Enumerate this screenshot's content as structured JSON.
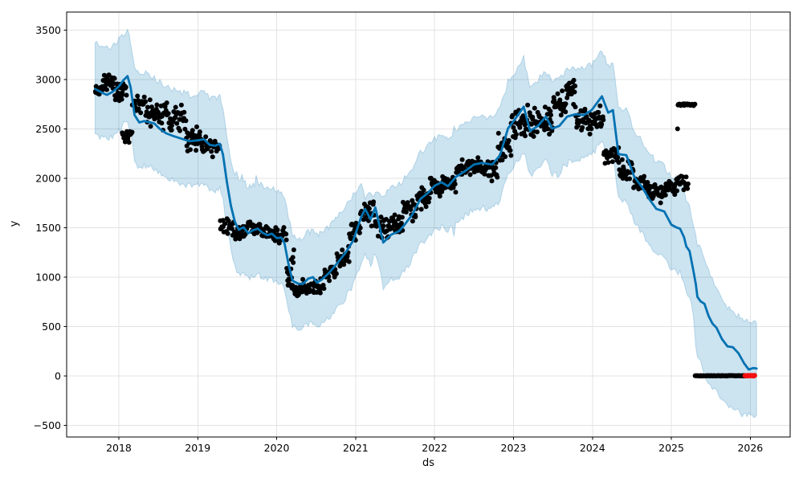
{
  "chart_data": {
    "type": "line+scatter+band",
    "description": "Prophet-style time series forecast: black actual points, blue yhat line, light blue uncertainty interval, red anomaly points at zero near forecast end",
    "title": "",
    "xlabel": "ds",
    "ylabel": "y",
    "xlim": [
      2017.339,
      2026.505
    ],
    "ylim": [
      -618,
      3683
    ],
    "grid": true,
    "x_tick_values": [
      2018,
      2019,
      2020,
      2021,
      2022,
      2023,
      2024,
      2025,
      2026
    ],
    "x_tick_labels": [
      "2018",
      "2019",
      "2020",
      "2021",
      "2022",
      "2023",
      "2024",
      "2025",
      "2026"
    ],
    "y_tick_values": [
      -500,
      0,
      500,
      1000,
      1500,
      2000,
      2500,
      3000,
      3500
    ],
    "y_tick_labels": [
      "−500",
      "0",
      "500",
      "1000",
      "1500",
      "2000",
      "2500",
      "3000",
      "3500"
    ],
    "colors": {
      "forecast_line": "#0072B2",
      "band_fill": "rgba(0,114,178,0.2)",
      "band_edge": "rgba(0,114,178,0.22)",
      "actual_points": "#000000",
      "anomaly_points": "#f20f0f",
      "grid": "#e3e3e3",
      "spine": "#000000",
      "text": "#000000"
    },
    "forecast": {
      "x": [
        2017.7,
        2017.78,
        2017.85,
        2017.92,
        2018.0,
        2018.06,
        2018.11,
        2018.15,
        2018.2,
        2018.26,
        2018.32,
        2018.38,
        2018.45,
        2018.52,
        2018.6,
        2018.7,
        2018.8,
        2018.9,
        2019.0,
        2019.08,
        2019.15,
        2019.22,
        2019.28,
        2019.32,
        2019.37,
        2019.42,
        2019.47,
        2019.52,
        2019.58,
        2019.64,
        2019.7,
        2019.76,
        2019.82,
        2019.88,
        2019.94,
        2020.0,
        2020.06,
        2020.1,
        2020.15,
        2020.2,
        2020.27,
        2020.33,
        2020.4,
        2020.46,
        2020.51,
        2020.57,
        2020.66,
        2020.77,
        2020.87,
        2020.97,
        2021.07,
        2021.12,
        2021.19,
        2021.25,
        2021.35,
        2021.45,
        2021.55,
        2021.62,
        2021.72,
        2021.82,
        2021.92,
        2022.0,
        2022.09,
        2022.17,
        2022.27,
        2022.39,
        2022.5,
        2022.6,
        2022.73,
        2022.83,
        2022.93,
        2023.03,
        2023.13,
        2023.21,
        2023.31,
        2023.41,
        2023.49,
        2023.58,
        2023.68,
        2023.79,
        2023.89,
        2023.99,
        2024.12,
        2024.2,
        2024.26,
        2024.33,
        2024.43,
        2024.53,
        2024.63,
        2024.72,
        2024.81,
        2024.91,
        2025.0,
        2025.06,
        2025.11,
        2025.16,
        2025.19,
        2025.23,
        2025.28,
        2025.31,
        2025.33,
        2025.37,
        2025.42,
        2025.47,
        2025.52,
        2025.57,
        2025.64,
        2025.71,
        2025.78,
        2025.85,
        2025.92,
        2025.98,
        2026.04,
        2026.08
      ],
      "yhat": [
        2905,
        2870,
        2845,
        2875,
        2930,
        2995,
        3035,
        2920,
        2640,
        2565,
        2580,
        2570,
        2555,
        2500,
        2455,
        2425,
        2400,
        2375,
        2385,
        2395,
        2340,
        2330,
        2350,
        2240,
        1960,
        1720,
        1560,
        1480,
        1505,
        1445,
        1475,
        1490,
        1450,
        1425,
        1440,
        1395,
        1400,
        1340,
        1130,
        965,
        935,
        930,
        985,
        1000,
        945,
        975,
        1040,
        1145,
        1245,
        1370,
        1610,
        1690,
        1585,
        1705,
        1350,
        1430,
        1465,
        1530,
        1635,
        1790,
        1855,
        1925,
        1960,
        1920,
        2015,
        2075,
        2140,
        2155,
        2140,
        2235,
        2505,
        2610,
        2725,
        2480,
        2530,
        2625,
        2505,
        2530,
        2625,
        2650,
        2640,
        2690,
        2830,
        2665,
        2690,
        2245,
        2235,
        2015,
        1910,
        1790,
        1690,
        1665,
        1530,
        1505,
        1490,
        1405,
        1310,
        1265,
        1060,
        930,
        800,
        755,
        730,
        610,
        530,
        490,
        375,
        300,
        290,
        230,
        130,
        65,
        80,
        75
      ],
      "yhat_upper": [
        3375,
        3340,
        3315,
        3345,
        3400,
        3465,
        3485,
        3390,
        3110,
        3035,
        3050,
        3040,
        3025,
        2970,
        2925,
        2895,
        2870,
        2845,
        2855,
        2865,
        2810,
        2800,
        2820,
        2710,
        2430,
        2190,
        2030,
        1950,
        1975,
        1915,
        1945,
        1960,
        1920,
        1895,
        1910,
        1865,
        1870,
        1810,
        1600,
        1435,
        1405,
        1400,
        1455,
        1470,
        1415,
        1445,
        1510,
        1615,
        1715,
        1840,
        1960,
        1800,
        1870,
        1830,
        1840,
        1900,
        1935,
        2000,
        2105,
        2260,
        2325,
        2395,
        2430,
        2390,
        2485,
        2545,
        2610,
        2625,
        2610,
        2705,
        2975,
        3080,
        3195,
        2950,
        3000,
        3095,
        2975,
        3000,
        3095,
        3120,
        3110,
        3160,
        3300,
        3135,
        3160,
        2715,
        2705,
        2485,
        2380,
        2260,
        2160,
        2135,
        2000,
        1975,
        1960,
        1875,
        1780,
        1735,
        1530,
        1430,
        1330,
        1280,
        1200,
        1080,
        980,
        870,
        760,
        680,
        640,
        600,
        560,
        545,
        540,
        535
      ],
      "yhat_lower": [
        2450,
        2415,
        2390,
        2420,
        2475,
        2540,
        2580,
        2465,
        2185,
        2110,
        2125,
        2115,
        2100,
        2045,
        2000,
        1970,
        1945,
        1920,
        1930,
        1940,
        1885,
        1875,
        1895,
        1785,
        1505,
        1265,
        1105,
        1025,
        1050,
        990,
        1020,
        1035,
        995,
        970,
        985,
        940,
        945,
        885,
        675,
        510,
        480,
        475,
        530,
        545,
        490,
        520,
        585,
        690,
        790,
        915,
        1155,
        1235,
        1130,
        1250,
        895,
        975,
        1010,
        1075,
        1180,
        1335,
        1400,
        1470,
        1505,
        1465,
        1560,
        1620,
        1685,
        1700,
        1685,
        1780,
        2050,
        2155,
        2270,
        2025,
        2075,
        2170,
        2050,
        2075,
        2170,
        2195,
        2185,
        2235,
        2375,
        2210,
        2235,
        1790,
        1780,
        1560,
        1455,
        1335,
        1235,
        1210,
        1075,
        1050,
        1035,
        950,
        855,
        810,
        605,
        300,
        220,
        130,
        30,
        -60,
        -120,
        -170,
        -250,
        -300,
        -330,
        -360,
        -380,
        -395,
        -400,
        -400
      ]
    },
    "actuals": {
      "marker": "black-dot",
      "segments_format": [
        "x_start",
        "x_end",
        "n_points",
        "mean_y",
        "spread_y"
      ],
      "segments": [
        [
          2017.7,
          2017.8,
          18,
          2890,
          50
        ],
        [
          2017.8,
          2017.95,
          24,
          2975,
          90
        ],
        [
          2017.95,
          2018.1,
          24,
          2890,
          95
        ],
        [
          2018.04,
          2018.17,
          15,
          2440,
          85
        ],
        [
          2018.17,
          2018.34,
          26,
          2750,
          90
        ],
        [
          2018.34,
          2018.6,
          34,
          2650,
          140
        ],
        [
          2018.6,
          2018.85,
          32,
          2610,
          150
        ],
        [
          2018.85,
          2019.04,
          26,
          2400,
          130
        ],
        [
          2019.04,
          2019.28,
          30,
          2320,
          95
        ],
        [
          2019.28,
          2019.46,
          22,
          1520,
          90
        ],
        [
          2019.46,
          2019.62,
          22,
          1445,
          80
        ],
        [
          2019.62,
          2019.8,
          26,
          1500,
          85
        ],
        [
          2019.8,
          2019.97,
          24,
          1445,
          75
        ],
        [
          2019.97,
          2020.12,
          20,
          1430,
          90
        ],
        [
          2020.12,
          2020.22,
          18,
          1100,
          270
        ],
        [
          2020.22,
          2020.42,
          28,
          890,
          85
        ],
        [
          2020.42,
          2020.6,
          24,
          905,
          90
        ],
        [
          2020.6,
          2020.76,
          22,
          1040,
          90
        ],
        [
          2020.76,
          2020.92,
          22,
          1190,
          110
        ],
        [
          2020.92,
          2021.06,
          20,
          1440,
          115
        ],
        [
          2021.06,
          2021.24,
          24,
          1650,
          140
        ],
        [
          2021.24,
          2021.42,
          24,
          1500,
          130
        ],
        [
          2021.42,
          2021.6,
          26,
          1520,
          120
        ],
        [
          2021.6,
          2021.77,
          24,
          1700,
          110
        ],
        [
          2021.77,
          2021.94,
          24,
          1810,
          110
        ],
        [
          2021.94,
          2022.1,
          24,
          1900,
          110
        ],
        [
          2022.1,
          2022.27,
          24,
          1950,
          120
        ],
        [
          2022.27,
          2022.44,
          24,
          2090,
          110
        ],
        [
          2022.44,
          2022.62,
          26,
          2150,
          120
        ],
        [
          2022.62,
          2022.8,
          24,
          2090,
          120
        ],
        [
          2022.8,
          2022.97,
          24,
          2330,
          140
        ],
        [
          2022.97,
          2023.14,
          24,
          2550,
          150
        ],
        [
          2023.14,
          2023.32,
          26,
          2550,
          160
        ],
        [
          2023.32,
          2023.5,
          24,
          2560,
          140
        ],
        [
          2023.5,
          2023.66,
          24,
          2740,
          150
        ],
        [
          2023.66,
          2023.78,
          20,
          2870,
          160
        ],
        [
          2023.78,
          2023.97,
          26,
          2580,
          140
        ],
        [
          2023.97,
          2024.14,
          26,
          2590,
          120
        ],
        [
          2024.14,
          2024.34,
          26,
          2230,
          100
        ],
        [
          2024.34,
          2024.52,
          26,
          2090,
          100
        ],
        [
          2024.52,
          2024.7,
          26,
          1950,
          100
        ],
        [
          2024.7,
          2024.88,
          26,
          1860,
          95
        ],
        [
          2024.88,
          2025.05,
          24,
          1900,
          90
        ],
        [
          2025.05,
          2025.22,
          20,
          1950,
          85
        ],
        [
          2025.06,
          2025.08,
          1,
          2500,
          5
        ],
        [
          2025.08,
          2025.3,
          30,
          2745,
          12
        ],
        [
          2025.3,
          2025.93,
          85,
          2,
          3
        ]
      ]
    },
    "anomalies": {
      "marker": "red-dot",
      "segments_format": [
        "x_start",
        "x_end",
        "n_points",
        "mean_y",
        "spread_y"
      ],
      "segments": [
        [
          2025.93,
          2026.06,
          12,
          2,
          3
        ]
      ]
    }
  }
}
